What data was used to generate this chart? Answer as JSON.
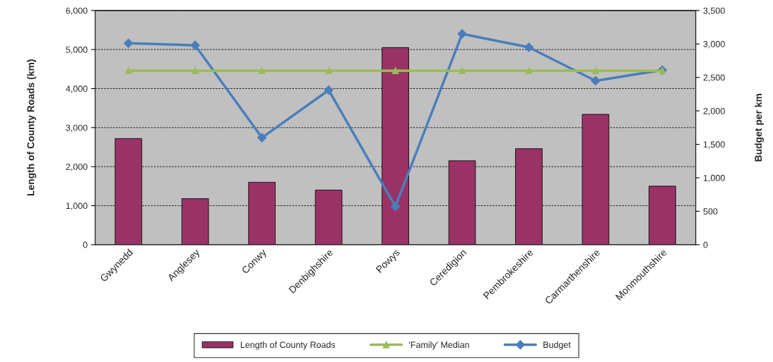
{
  "chart_data": {
    "type": "bar",
    "categories": [
      "Gwynedd",
      "Anglesey",
      "Conwy",
      "Denbighshire",
      "Powys",
      "Ceredigion",
      "Pembrokeshire",
      "Carmarthenshire",
      "Monmouthshire"
    ],
    "ylabel": "Length of County Roads (km)",
    "y2label": "Budget per km",
    "series": [
      {
        "name": "Length of County Roads",
        "color": "#993366",
        "values": [
          2720,
          1180,
          1600,
          1400,
          5050,
          2150,
          2460,
          3340,
          1500
        ]
      },
      {
        "name": "'Family' Median",
        "type": "line",
        "axis": "y2",
        "marker": "triangle",
        "color": "#9bbb59",
        "values": [
          2600,
          2600,
          2600,
          2600,
          2600,
          2600,
          2600,
          2600,
          2600
        ]
      },
      {
        "name": "Budget",
        "type": "line",
        "axis": "y2",
        "marker": "diamond",
        "color": "#4a7ebb",
        "values": [
          3010,
          2980,
          1600,
          2310,
          570,
          3150,
          2950,
          2450,
          2610
        ]
      }
    ],
    "ylim": [
      0,
      6000
    ],
    "yticks": [
      0,
      {
        "value": 1000,
        "label": "1,000"
      },
      {
        "value": 2000,
        "label": "2,000"
      },
      {
        "value": 3000,
        "label": "3,000"
      },
      {
        "value": 4000,
        "label": "4,000"
      },
      {
        "value": 5000,
        "label": "5,000"
      },
      {
        "value": 6000,
        "label": "6,000"
      }
    ],
    "y2lim": [
      0,
      3500
    ],
    "y2ticks": [
      0,
      500,
      {
        "value": 1000,
        "label": "1,000"
      },
      {
        "value": 1500,
        "label": "1,500"
      },
      {
        "value": 2000,
        "label": "2,000"
      },
      {
        "value": 2500,
        "label": "2,500"
      },
      {
        "value": 3000,
        "label": "3,000"
      },
      {
        "value": 3500,
        "label": "3,500"
      }
    ],
    "grid": "y",
    "legend": "bottom"
  }
}
